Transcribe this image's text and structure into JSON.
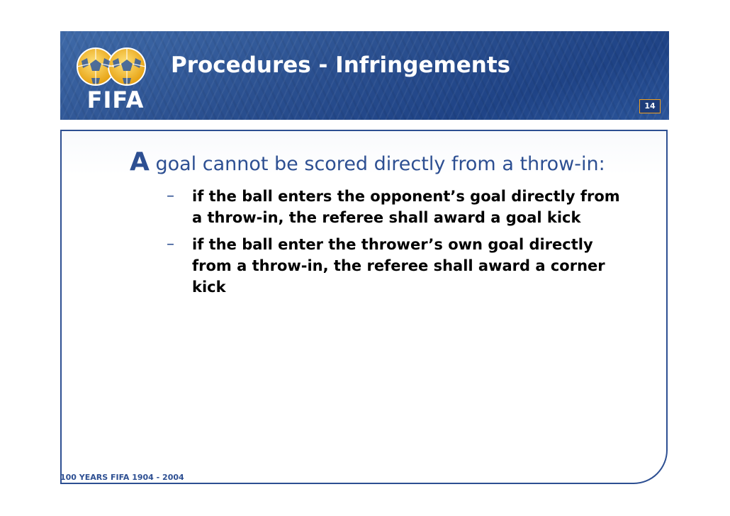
{
  "header": {
    "title": "Procedures - Infringements",
    "page_number": "14",
    "logo_text": "FIFA",
    "colors": {
      "banner": "#2a4f8f",
      "accent": "#f0a020",
      "ball": "#f2c230"
    }
  },
  "content": {
    "lead_cap": "A",
    "lead_rest": " goal cannot be scored directly from a throw-in:",
    "bullets": [
      "if the ball enters the opponent’s goal directly from a throw-in, the referee shall award a goal kick",
      "if the ball enter the thrower’s own goal directly from a throw-in, the referee shall award a corner kick"
    ],
    "bullet_marker": "–"
  },
  "footer": {
    "text": "100 YEARS FIFA  1904 - 2004"
  }
}
